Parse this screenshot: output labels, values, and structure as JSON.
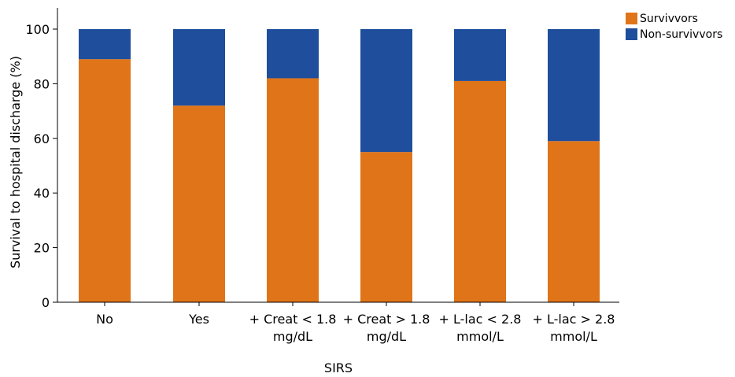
{
  "chart_data": {
    "type": "bar",
    "stacked": true,
    "categories": [
      [
        "No"
      ],
      [
        "Yes"
      ],
      [
        "+ Creat < 1.8",
        "mg/dL"
      ],
      [
        "+ Creat > 1.8",
        "mg/dL"
      ],
      [
        "+ L-lac < 2.8",
        "mmol/L"
      ],
      [
        "+ L-lac > 2.8",
        "mmol/L"
      ]
    ],
    "series": [
      {
        "name": "Survivvors",
        "color": "#e07418",
        "values": [
          89,
          72,
          82,
          55,
          81,
          59
        ]
      },
      {
        "name": "Non-survivvors",
        "color": "#1f4e9c",
        "values": [
          11,
          28,
          18,
          45,
          19,
          41
        ]
      }
    ],
    "xlabel": "SIRS",
    "ylabel": "Survival to hospital discharge (%)",
    "ylim": [
      0,
      100
    ],
    "yticks": [
      0,
      20,
      40,
      60,
      80,
      100
    ],
    "grid": false,
    "legend_position": "top-right"
  }
}
